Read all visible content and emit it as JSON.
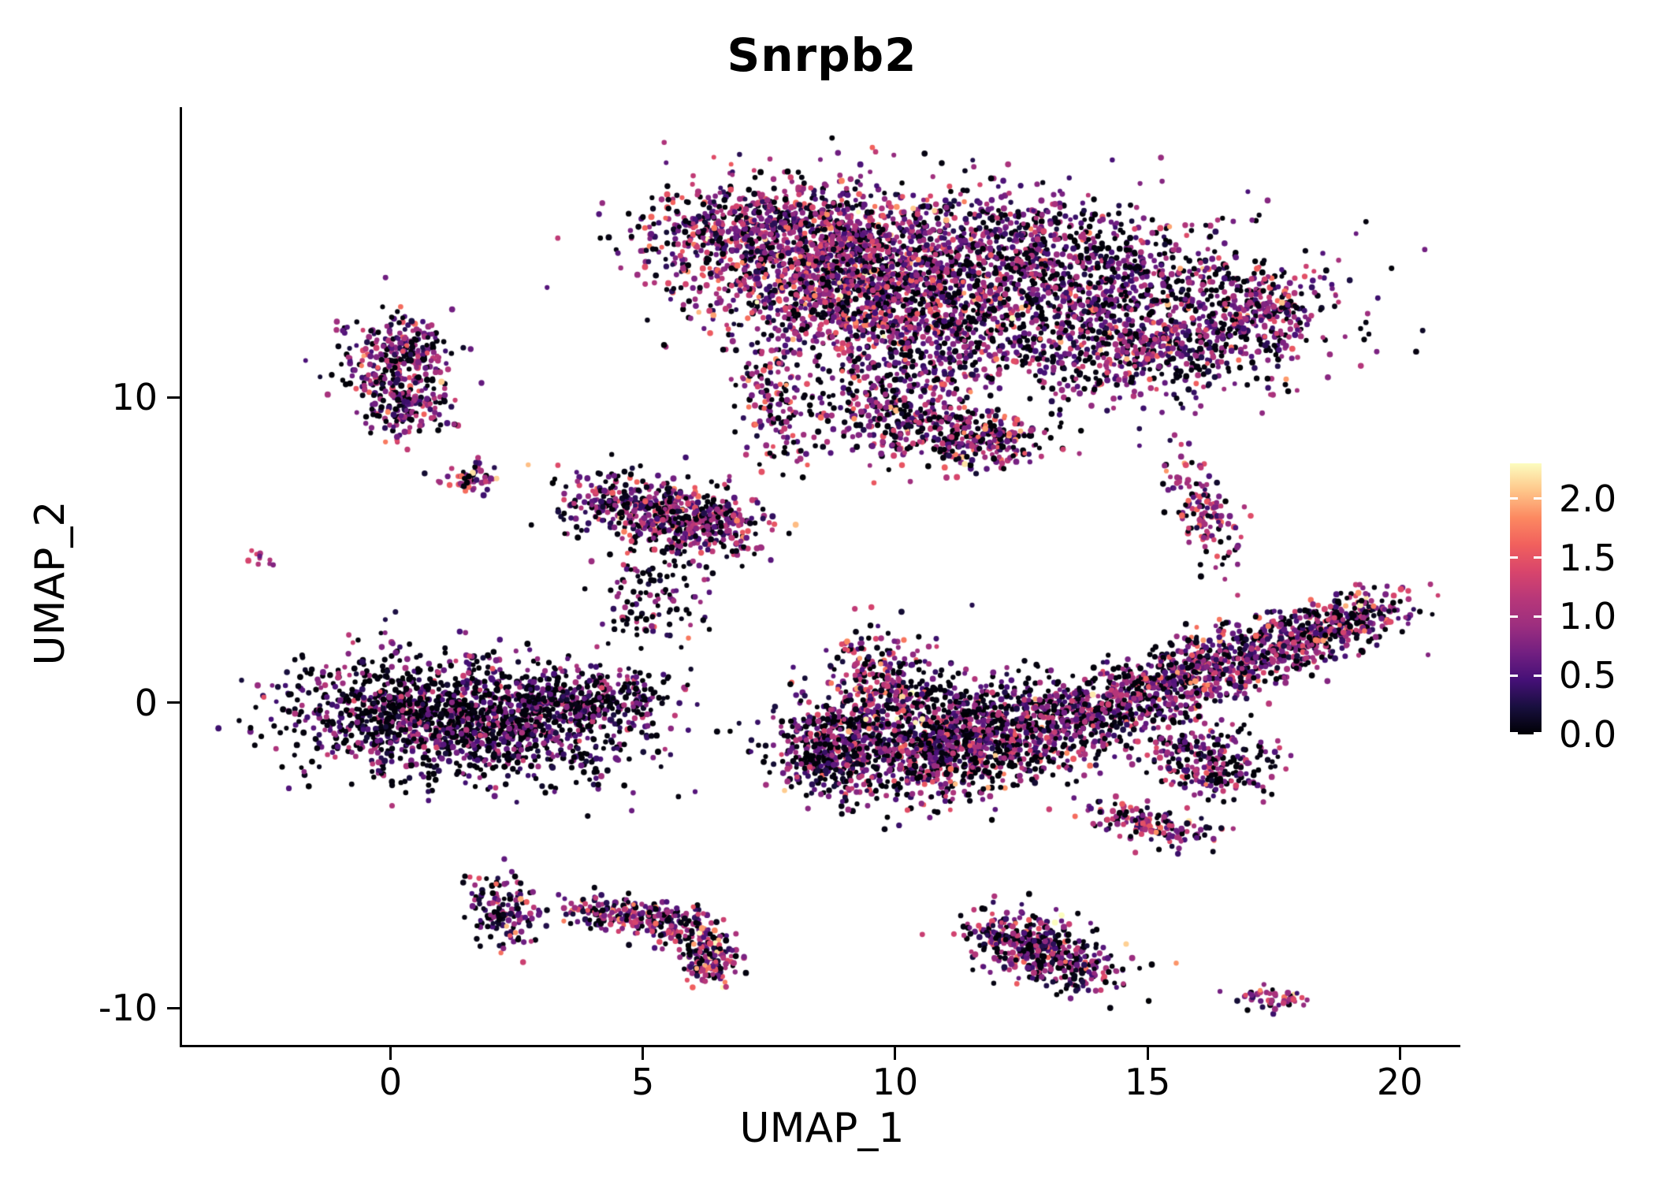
{
  "chart_data": {
    "type": "scatter",
    "title": "Snrpb2",
    "xlabel": "UMAP_1",
    "ylabel": "UMAP_2",
    "xlim": [
      -4.1,
      21.2
    ],
    "ylim": [
      -11.2,
      19.5
    ],
    "x_ticks": [
      0,
      5,
      10,
      15,
      20
    ],
    "y_ticks": [
      10,
      0,
      -10
    ],
    "grid": false,
    "legend_position": "right",
    "colorbar": {
      "ticks": [
        2.0,
        1.5,
        1.0,
        0.5,
        0.0
      ],
      "tick_labels": [
        "2.0",
        "1.5",
        "1.0",
        "0.5",
        "0.0"
      ],
      "vmin": 0.0,
      "vmax": 2.3,
      "colormap": "magma",
      "stops": [
        "#000004",
        "#180f3e",
        "#451077",
        "#721f81",
        "#9c2e7f",
        "#b73779",
        "#d8456c",
        "#f1605d",
        "#fc8961",
        "#fec68a",
        "#fcfdbf"
      ]
    },
    "point_radius_px": 3.4,
    "clusters": [
      {
        "name": "top-main-left-dense",
        "cx": 8.3,
        "cy": 14.5,
        "rx": 1.5,
        "ry": 1.2,
        "rot": -10,
        "n": 1400,
        "v": [
          0.18,
          0.85,
          0.5
        ]
      },
      {
        "name": "top-main-left-lower",
        "cx": 10.2,
        "cy": 12.9,
        "rx": 1.2,
        "ry": 1.4,
        "rot": 0,
        "n": 900,
        "v": [
          0.2,
          0.8,
          0.5
        ]
      },
      {
        "name": "top-main-top-edge",
        "cx": 7.0,
        "cy": 15.7,
        "rx": 1.1,
        "ry": 0.55,
        "rot": 5,
        "n": 250,
        "v": [
          0.25,
          0.7,
          0.45
        ]
      },
      {
        "name": "top-main-top-mid",
        "cx": 12.2,
        "cy": 15.2,
        "rx": 1.2,
        "ry": 0.8,
        "rot": -15,
        "n": 300,
        "v": [
          0.3,
          0.65,
          0.45
        ]
      },
      {
        "name": "top-main-right",
        "cx": 14.4,
        "cy": 13.5,
        "rx": 2.1,
        "ry": 1.3,
        "rot": -8,
        "n": 1100,
        "v": [
          0.3,
          0.7,
          0.45
        ]
      },
      {
        "name": "top-main-right-lower",
        "cx": 14.6,
        "cy": 11.4,
        "rx": 1.5,
        "ry": 0.8,
        "rot": -5,
        "n": 400,
        "v": [
          0.3,
          0.7,
          0.45
        ]
      },
      {
        "name": "top-main-right-rim",
        "cx": 17.1,
        "cy": 12.6,
        "rx": 0.55,
        "ry": 0.85,
        "rot": -30,
        "n": 200,
        "v": [
          0.25,
          0.8,
          0.45
        ]
      },
      {
        "name": "top-main-sparse-mid",
        "cx": 11.6,
        "cy": 12.6,
        "rx": 2.3,
        "ry": 1.9,
        "rot": 0,
        "n": 280,
        "v": [
          0.35,
          0.6,
          0.45
        ]
      },
      {
        "name": "top-left-strand",
        "cx": 7.6,
        "cy": 10.0,
        "rx": 0.4,
        "ry": 1.1,
        "rot": 8,
        "n": 140,
        "v": [
          0.25,
          0.85,
          0.55
        ]
      },
      {
        "name": "top-lower-blob",
        "cx": 10.4,
        "cy": 9.3,
        "rx": 1.0,
        "ry": 0.7,
        "rot": -20,
        "n": 380,
        "v": [
          0.25,
          0.8,
          0.5
        ]
      },
      {
        "name": "top-lower-tail",
        "cx": 11.9,
        "cy": 8.6,
        "rx": 0.5,
        "ry": 0.45,
        "rot": 0,
        "n": 150,
        "v": [
          0.25,
          0.8,
          0.5
        ]
      },
      {
        "name": "upperleft-blob-top",
        "cx": 0.15,
        "cy": 11.3,
        "rx": 0.55,
        "ry": 0.75,
        "rot": 0,
        "n": 300,
        "v": [
          0.25,
          0.75,
          0.45
        ]
      },
      {
        "name": "upperleft-blob-bottom",
        "cx": 0.3,
        "cy": 9.6,
        "rx": 0.4,
        "ry": 0.5,
        "rot": 0,
        "n": 140,
        "v": [
          0.3,
          0.7,
          0.45
        ]
      },
      {
        "name": "small-mid-upper",
        "cx": 1.6,
        "cy": 7.35,
        "rx": 0.3,
        "ry": 0.25,
        "rot": 0,
        "n": 55,
        "v": [
          0.2,
          1.0,
          0.5
        ]
      },
      {
        "name": "tiny-far-left",
        "cx": -2.5,
        "cy": 4.7,
        "rx": 0.14,
        "ry": 0.13,
        "rot": 0,
        "n": 10,
        "v": [
          0.1,
          1.2,
          0.4
        ]
      },
      {
        "name": "midleft-main",
        "cx": 5.0,
        "cy": 6.35,
        "rx": 0.95,
        "ry": 0.5,
        "rot": -8,
        "n": 380,
        "v": [
          0.25,
          0.8,
          0.5
        ]
      },
      {
        "name": "midleft-right",
        "cx": 6.2,
        "cy": 5.75,
        "rx": 0.7,
        "ry": 0.5,
        "rot": -20,
        "n": 260,
        "v": [
          0.25,
          0.8,
          0.5
        ]
      },
      {
        "name": "midleft-scatter",
        "cx": 5.3,
        "cy": 4.0,
        "rx": 0.6,
        "ry": 1.0,
        "rot": 0,
        "n": 110,
        "v": [
          0.4,
          0.5,
          0.45
        ]
      },
      {
        "name": "midleft-trail",
        "cx": 4.85,
        "cy": 2.8,
        "rx": 0.25,
        "ry": 0.35,
        "rot": 0,
        "n": 22,
        "v": [
          0.35,
          0.5,
          0.4
        ]
      },
      {
        "name": "left-main",
        "cx": 1.4,
        "cy": -0.55,
        "rx": 1.7,
        "ry": 0.95,
        "rot": -7,
        "n": 1600,
        "v": [
          0.42,
          0.5,
          0.42
        ]
      },
      {
        "name": "left-main-right",
        "cx": 4.0,
        "cy": 0.1,
        "rx": 0.9,
        "ry": 0.5,
        "rot": 10,
        "n": 300,
        "v": [
          0.4,
          0.55,
          0.42
        ]
      },
      {
        "name": "center-arm-up",
        "cx": 9.7,
        "cy": 0.8,
        "rx": 0.5,
        "ry": 0.85,
        "rot": 15,
        "n": 220,
        "v": [
          0.2,
          0.9,
          0.55
        ]
      },
      {
        "name": "center-left-edge",
        "cx": 8.6,
        "cy": -1.6,
        "rx": 0.5,
        "ry": 0.8,
        "rot": 0,
        "n": 300,
        "v": [
          0.35,
          0.6,
          0.45
        ]
      },
      {
        "name": "center-main",
        "cx": 10.6,
        "cy": -1.5,
        "rx": 1.2,
        "ry": 0.85,
        "rot": -5,
        "n": 900,
        "v": [
          0.3,
          0.7,
          0.48
        ]
      },
      {
        "name": "center-right",
        "cx": 12.4,
        "cy": -1.0,
        "rx": 1.0,
        "ry": 0.7,
        "rot": -15,
        "n": 400,
        "v": [
          0.3,
          0.7,
          0.45
        ]
      },
      {
        "name": "center-neck",
        "cx": 13.6,
        "cy": -0.3,
        "rx": 0.7,
        "ry": 0.45,
        "rot": -25,
        "n": 220,
        "v": [
          0.3,
          0.7,
          0.45
        ]
      },
      {
        "name": "center-sparse-top",
        "cx": 11.3,
        "cy": 0.2,
        "rx": 1.3,
        "ry": 0.6,
        "rot": 0,
        "n": 160,
        "v": [
          0.45,
          0.5,
          0.4
        ]
      },
      {
        "name": "right-band-1",
        "cx": 15.0,
        "cy": 0.3,
        "rx": 0.7,
        "ry": 0.5,
        "rot": 25,
        "n": 260,
        "v": [
          0.28,
          0.75,
          0.45
        ]
      },
      {
        "name": "right-band-2",
        "cx": 16.3,
        "cy": 1.1,
        "rx": 0.9,
        "ry": 0.55,
        "rot": 22,
        "n": 380,
        "v": [
          0.28,
          0.75,
          0.45
        ]
      },
      {
        "name": "right-band-3",
        "cx": 17.8,
        "cy": 2.0,
        "rx": 1.0,
        "ry": 0.5,
        "rot": 22,
        "n": 380,
        "v": [
          0.25,
          0.8,
          0.45
        ]
      },
      {
        "name": "right-band-4",
        "cx": 19.1,
        "cy": 2.9,
        "rx": 0.55,
        "ry": 0.4,
        "rot": 25,
        "n": 160,
        "v": [
          0.25,
          0.85,
          0.5
        ]
      },
      {
        "name": "right-piece-below",
        "cx": 16.2,
        "cy": -1.9,
        "rx": 0.75,
        "ry": 0.55,
        "rot": -35,
        "n": 260,
        "v": [
          0.3,
          0.7,
          0.45
        ]
      },
      {
        "name": "right-small-lower",
        "cx": 15.1,
        "cy": -4.0,
        "rx": 0.7,
        "ry": 0.3,
        "rot": -20,
        "n": 150,
        "v": [
          0.2,
          0.9,
          0.5
        ]
      },
      {
        "name": "right-vertical-small",
        "cx": 16.1,
        "cy": 6.4,
        "rx": 0.28,
        "ry": 1.0,
        "rot": 12,
        "n": 140,
        "v": [
          0.2,
          0.95,
          0.5
        ]
      },
      {
        "name": "bottom-left-small",
        "cx": 2.3,
        "cy": -6.9,
        "rx": 0.35,
        "ry": 0.55,
        "rot": 10,
        "n": 150,
        "v": [
          0.3,
          0.7,
          0.5
        ]
      },
      {
        "name": "bottom-arc-1",
        "cx": 4.3,
        "cy": -6.85,
        "rx": 0.45,
        "ry": 0.3,
        "rot": -10,
        "n": 110,
        "v": [
          0.25,
          0.8,
          0.5
        ]
      },
      {
        "name": "bottom-arc-2",
        "cx": 5.4,
        "cy": -7.15,
        "rx": 0.6,
        "ry": 0.3,
        "rot": -15,
        "n": 130,
        "v": [
          0.25,
          0.85,
          0.5
        ]
      },
      {
        "name": "bottom-arc-3",
        "cx": 6.2,
        "cy": -7.9,
        "rx": 0.3,
        "ry": 0.5,
        "rot": 15,
        "n": 110,
        "v": [
          0.2,
          0.9,
          0.55
        ]
      },
      {
        "name": "bottom-arc-4",
        "cx": 6.35,
        "cy": -8.6,
        "rx": 0.3,
        "ry": 0.3,
        "rot": 0,
        "n": 70,
        "v": [
          0.2,
          0.9,
          0.55
        ]
      },
      {
        "name": "bottom-right-1",
        "cx": 12.45,
        "cy": -7.8,
        "rx": 0.6,
        "ry": 0.5,
        "rot": -20,
        "n": 220,
        "v": [
          0.3,
          0.7,
          0.5
        ]
      },
      {
        "name": "bottom-right-2",
        "cx": 13.35,
        "cy": -8.5,
        "rx": 0.7,
        "ry": 0.45,
        "rot": -25,
        "n": 240,
        "v": [
          0.3,
          0.7,
          0.5
        ]
      },
      {
        "name": "tiny-bottom-right",
        "cx": 17.4,
        "cy": -9.7,
        "rx": 0.38,
        "ry": 0.18,
        "rot": -12,
        "n": 50,
        "v": [
          0.12,
          1.1,
          0.45
        ]
      }
    ]
  }
}
